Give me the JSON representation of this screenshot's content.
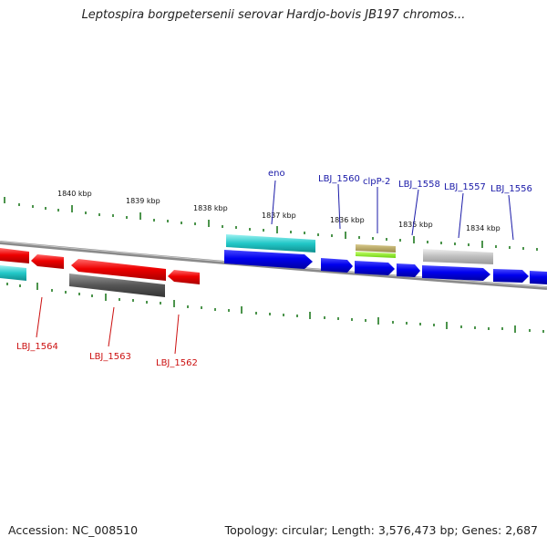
{
  "title": "Leptospira borgpetersenii serovar Hardjo-bovis JB197 chromos...",
  "footer": {
    "accession": "Accession: NC_008510",
    "topology": "Topology: circular; Length: 3,576,473 bp; Genes: 2,687"
  },
  "colors": {
    "forward_gene": "#0a0ae6",
    "reverse_gene": "#e30d0d",
    "forward_label": "#1a1aa8",
    "reverse_label": "#cc1111",
    "tick": "#1f7a1f",
    "backbone": "#8a8a8a"
  },
  "scale_labels": [
    "1840 kbp",
    "1839 kbp",
    "1838 kbp",
    "1837 kbp",
    "1836 kbp",
    "1835 kbp",
    "1834 kbp"
  ],
  "genes_top": [
    "eno",
    "LBJ_1560",
    "clpP-2",
    "LBJ_1558",
    "LBJ_1557",
    "LBJ_1556"
  ],
  "genes_bottom": [
    "LBJ_1564",
    "LBJ_1563",
    "LBJ_1562"
  ]
}
